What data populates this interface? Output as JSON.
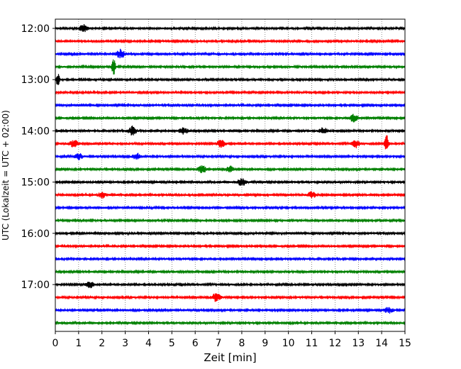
{
  "chart_data": {
    "type": "line",
    "title": "",
    "xlabel": "Zeit  [min]",
    "ylabel": "UTC (Lokalzeit = UTC + 02:00)",
    "xlim": [
      0,
      15
    ],
    "x_ticks": [
      "0",
      "1",
      "2",
      "3",
      "4",
      "5",
      "6",
      "7",
      "8",
      "9",
      "10",
      "11",
      "12",
      "13",
      "14",
      "15"
    ],
    "y_tick_labels": [
      "12:00",
      "13:00",
      "14:00",
      "15:00",
      "16:00",
      "17:00"
    ],
    "y_tick_traces": [
      0,
      4,
      8,
      12,
      16,
      20
    ],
    "vertical_grid": true,
    "trace_interval_min": 15,
    "start_time": "12:00",
    "trace_colors": [
      "#000000",
      "#ff0000",
      "#0000ff",
      "#008000"
    ],
    "series": [
      {
        "start": "12:00",
        "color": "#000000",
        "events": [
          {
            "t": 1.2,
            "a": 5
          }
        ]
      },
      {
        "start": "12:15",
        "color": "#ff0000",
        "events": []
      },
      {
        "start": "12:30",
        "color": "#0000ff",
        "events": [
          {
            "t": 2.8,
            "a": 6
          }
        ]
      },
      {
        "start": "12:45",
        "color": "#008000",
        "events": [
          {
            "t": 2.5,
            "a": 12
          }
        ]
      },
      {
        "start": "13:00",
        "color": "#000000",
        "events": [
          {
            "t": 0.1,
            "a": 10
          }
        ]
      },
      {
        "start": "13:15",
        "color": "#ff0000",
        "events": []
      },
      {
        "start": "13:30",
        "color": "#0000ff",
        "events": []
      },
      {
        "start": "13:45",
        "color": "#008000",
        "events": [
          {
            "t": 12.8,
            "a": 5
          }
        ]
      },
      {
        "start": "14:00",
        "color": "#000000",
        "events": [
          {
            "t": 3.3,
            "a": 6
          },
          {
            "t": 5.5,
            "a": 4
          },
          {
            "t": 11.5,
            "a": 4
          }
        ]
      },
      {
        "start": "14:15",
        "color": "#ff0000",
        "events": [
          {
            "t": 0.8,
            "a": 5
          },
          {
            "t": 7.1,
            "a": 5
          },
          {
            "t": 12.9,
            "a": 5
          },
          {
            "t": 14.2,
            "a": 14
          }
        ]
      },
      {
        "start": "14:30",
        "color": "#0000ff",
        "events": [
          {
            "t": 1.0,
            "a": 4
          },
          {
            "t": 3.5,
            "a": 4
          }
        ]
      },
      {
        "start": "14:45",
        "color": "#008000",
        "events": [
          {
            "t": 6.3,
            "a": 5
          },
          {
            "t": 7.5,
            "a": 4
          }
        ]
      },
      {
        "start": "15:00",
        "color": "#000000",
        "events": [
          {
            "t": 8.0,
            "a": 5
          }
        ]
      },
      {
        "start": "15:15",
        "color": "#ff0000",
        "events": [
          {
            "t": 2.0,
            "a": 4
          },
          {
            "t": 11.0,
            "a": 4
          }
        ]
      },
      {
        "start": "15:30",
        "color": "#0000ff",
        "events": []
      },
      {
        "start": "15:45",
        "color": "#008000",
        "events": []
      },
      {
        "start": "16:00",
        "color": "#000000",
        "events": []
      },
      {
        "start": "16:15",
        "color": "#ff0000",
        "events": []
      },
      {
        "start": "16:30",
        "color": "#0000ff",
        "events": []
      },
      {
        "start": "16:45",
        "color": "#008000",
        "events": []
      },
      {
        "start": "17:00",
        "color": "#000000",
        "events": [
          {
            "t": 1.5,
            "a": 4
          }
        ]
      },
      {
        "start": "17:15",
        "color": "#ff0000",
        "events": [
          {
            "t": 6.9,
            "a": 6
          }
        ]
      },
      {
        "start": "17:30",
        "color": "#0000ff",
        "events": [
          {
            "t": 14.3,
            "a": 4
          }
        ]
      },
      {
        "start": "17:45",
        "color": "#008000",
        "events": []
      }
    ]
  }
}
